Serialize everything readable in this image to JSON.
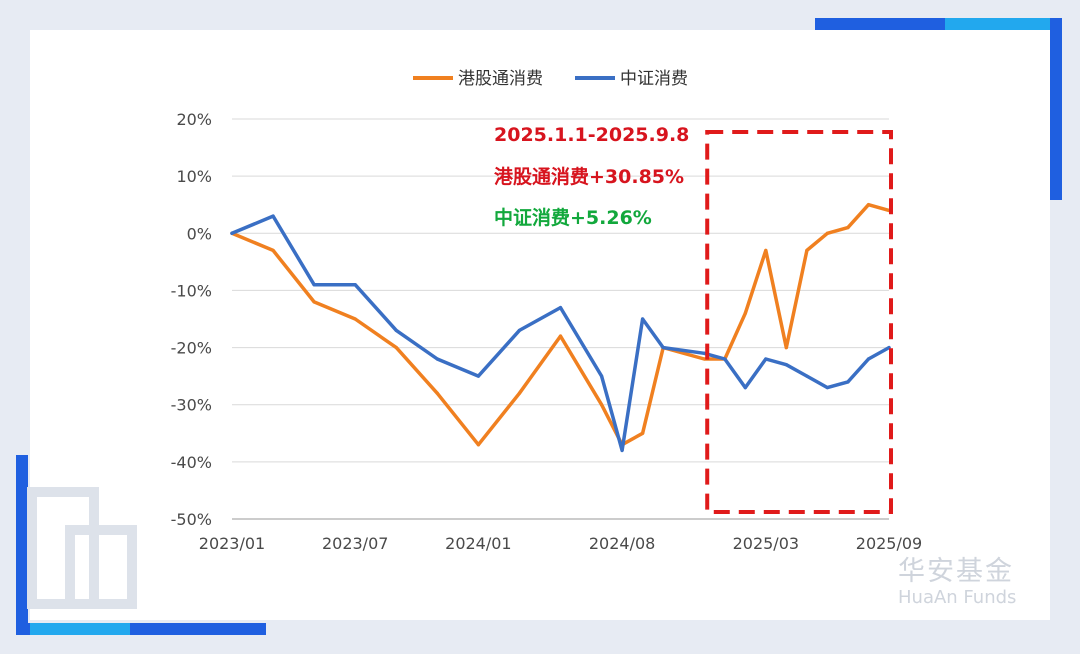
{
  "chart_data": {
    "type": "line",
    "x": [
      "2023/01",
      "2023/03",
      "2023/05",
      "2023/07",
      "2023/09",
      "2023/11",
      "2024/01",
      "2024/03",
      "2024/05",
      "2024/07",
      "2024/08",
      "2024/09",
      "2024/10",
      "2024/12",
      "2025/01",
      "2025/02",
      "2025/03",
      "2025/04",
      "2025/05",
      "2025/06",
      "2025/07",
      "2025/08",
      "2025/09"
    ],
    "series": [
      {
        "name": "港股通消费",
        "color": "#f08020",
        "values": [
          0,
          -3,
          -12,
          -15,
          -20,
          -28,
          -37,
          -28,
          -18,
          -30,
          -37,
          -35,
          -20,
          -22,
          -22,
          -14,
          -3,
          -20,
          -3,
          0,
          1,
          5,
          4
        ]
      },
      {
        "name": "中证消费",
        "color": "#3a6fc4",
        "values": [
          0,
          3,
          -9,
          -9,
          -17,
          -22,
          -25,
          -17,
          -13,
          -25,
          -38,
          -15,
          -20,
          -21,
          -22,
          -27,
          -22,
          -23,
          -25,
          -27,
          -26,
          -22,
          -20
        ]
      }
    ],
    "xticks": [
      "2023/01",
      "2023/07",
      "2024/01",
      "2024/08",
      "2025/03",
      "2025/09"
    ],
    "yticks": [
      "20%",
      "10%",
      "0%",
      "-10%",
      "-20%",
      "-30%",
      "-40%",
      "-50%"
    ],
    "ylim": [
      -50,
      20
    ],
    "grid": true,
    "legend": "top",
    "annotations": {
      "period": "2025.1.1-2025.9.8",
      "hk": "港股通消费+30.85%",
      "csi": "中证消费+5.26%"
    },
    "highlight": {
      "from": "2024/12",
      "to": "2025/09"
    }
  },
  "logo": {
    "cn": "华安基金",
    "en": "HuaAn Funds"
  },
  "colors": {
    "accent_blue": "#1f5fe0",
    "frame_gray": "#e7ebf3",
    "box_red": "#e01a1a"
  }
}
